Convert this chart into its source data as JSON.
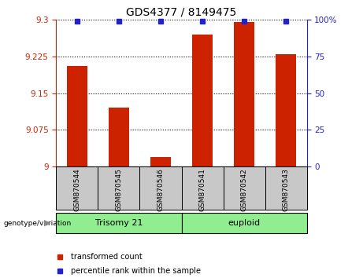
{
  "title": "GDS4377 / 8149475",
  "samples": [
    "GSM870544",
    "GSM870545",
    "GSM870546",
    "GSM870541",
    "GSM870542",
    "GSM870543"
  ],
  "transformed_count": [
    9.205,
    9.12,
    9.02,
    9.27,
    9.295,
    9.23
  ],
  "percentile_rank": [
    99,
    99,
    99,
    99,
    99,
    99
  ],
  "ylim_left": [
    9.0,
    9.3
  ],
  "ylim_right": [
    0,
    100
  ],
  "yticks_left": [
    9.0,
    9.075,
    9.15,
    9.225,
    9.3
  ],
  "ytick_labels_left": [
    "9",
    "9.075",
    "9.15",
    "9.225",
    "9.3"
  ],
  "yticks_right": [
    0,
    25,
    50,
    75,
    100
  ],
  "ytick_labels_right": [
    "0",
    "25",
    "50",
    "75",
    "100%"
  ],
  "groups": [
    {
      "label": "Trisomy 21",
      "indices": [
        0,
        1,
        2
      ],
      "color": "#90EE90"
    },
    {
      "label": "euploid",
      "indices": [
        3,
        4,
        5
      ],
      "color": "#90EE90"
    }
  ],
  "group_label": "genotype/variation",
  "bar_color": "#CC2200",
  "dot_color": "#2222CC",
  "bar_width": 0.5,
  "label_transformed": "transformed count",
  "label_percentile": "percentile rank within the sample",
  "tick_color_left": "#CC2200",
  "tick_color_right": "#2222CC",
  "xticklabel_bg": "#C8C8C8",
  "grid_linestyle": ":",
  "title_fontsize": 10
}
